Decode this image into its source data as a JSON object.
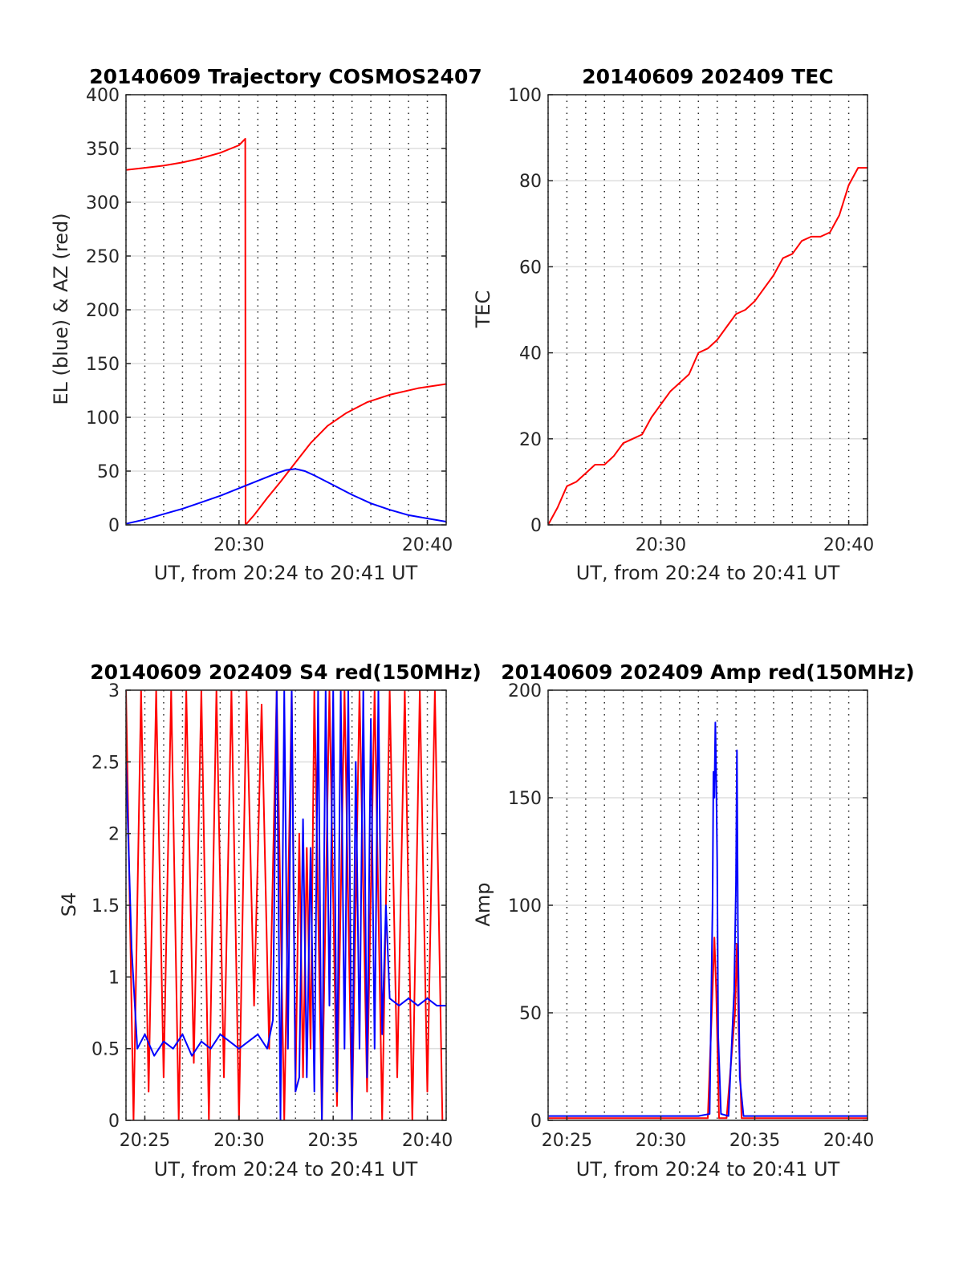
{
  "chart_data": [
    {
      "id": "trajectory",
      "type": "line",
      "title": "20140609 Trajectory COSMOS2407",
      "xlabel": "UT, from 20:24 to 20:41 UT",
      "ylabel": "EL (blue) & AZ (red)",
      "xlim": [
        24.0,
        41.0
      ],
      "ylim": [
        0,
        400
      ],
      "xticks": [
        {
          "value": 30,
          "label": "20:30"
        },
        {
          "value": 40,
          "label": "20:40"
        }
      ],
      "yticks": [
        0,
        50,
        100,
        150,
        200,
        250,
        300,
        350,
        400
      ],
      "xgrid_minutes": [
        24,
        25,
        26,
        27,
        28,
        29,
        30,
        31,
        32,
        33,
        34,
        35,
        36,
        37,
        38,
        39,
        40,
        41
      ],
      "series": [
        {
          "color": "#ff0000",
          "x": [
            24.0,
            25.0,
            26.0,
            27.0,
            28.0,
            29.0,
            30.0,
            30.33,
            30.35,
            30.8,
            31.5,
            32.2,
            33.0,
            33.8,
            34.7,
            35.7,
            36.8,
            38.0,
            39.5,
            41.0
          ],
          "y": [
            330,
            332,
            334,
            337,
            341,
            346,
            353,
            359,
            0,
            9,
            25,
            40,
            58,
            76,
            92,
            104,
            114,
            121,
            127,
            131
          ]
        },
        {
          "color": "#0000ff",
          "x": [
            24.0,
            25.0,
            26.0,
            27.0,
            28.0,
            29.0,
            30.0,
            31.0,
            32.0,
            32.5,
            33.0,
            33.5,
            34.0,
            35.0,
            36.0,
            37.0,
            38.0,
            39.0,
            40.0,
            41.0
          ],
          "y": [
            1,
            5,
            10,
            15,
            21,
            27,
            34,
            41,
            48,
            51,
            52,
            50,
            46,
            37,
            28,
            20,
            14,
            9,
            6,
            3
          ]
        }
      ]
    },
    {
      "id": "tec",
      "type": "line",
      "title": "20140609 202409 TEC",
      "xlabel": "UT, from 20:24 to 20:41 UT",
      "ylabel": "TEC",
      "xlim": [
        24.0,
        41.0
      ],
      "ylim": [
        0,
        100
      ],
      "xticks": [
        {
          "value": 30,
          "label": "20:30"
        },
        {
          "value": 40,
          "label": "20:40"
        }
      ],
      "yticks": [
        0,
        20,
        40,
        60,
        80,
        100
      ],
      "xgrid_minutes": [
        24,
        25,
        26,
        27,
        28,
        29,
        30,
        31,
        32,
        33,
        34,
        35,
        36,
        37,
        38,
        39,
        40,
        41
      ],
      "series": [
        {
          "color": "#ff0000",
          "x": [
            24.0,
            24.5,
            25.0,
            25.5,
            26.0,
            26.5,
            27.0,
            27.5,
            28.0,
            28.5,
            29.0,
            29.5,
            30.0,
            30.5,
            31.0,
            31.5,
            32.0,
            32.5,
            33.0,
            33.5,
            34.0,
            34.5,
            35.0,
            35.5,
            36.0,
            36.5,
            37.0,
            37.5,
            38.0,
            38.5,
            39.0,
            39.5,
            40.0,
            40.5,
            41.0
          ],
          "y": [
            0,
            4,
            9,
            10,
            12,
            14,
            14,
            16,
            19,
            20,
            21,
            25,
            28,
            31,
            33,
            35,
            40,
            41,
            43,
            46,
            49,
            50,
            52,
            55,
            58,
            62,
            63,
            66,
            67,
            67,
            68,
            72,
            79,
            83,
            83
          ]
        }
      ]
    },
    {
      "id": "s4",
      "type": "line",
      "title": "20140609 202409 S4 red(150MHz)",
      "xlabel": "UT, from 20:24 to 20:41 UT",
      "ylabel": "S4",
      "xlim": [
        24.0,
        41.0
      ],
      "ylim": [
        0,
        3
      ],
      "xticks": [
        {
          "value": 25,
          "label": "20:25"
        },
        {
          "value": 30,
          "label": "20:30"
        },
        {
          "value": 35,
          "label": "20:35"
        },
        {
          "value": 40,
          "label": "20:40"
        }
      ],
      "yticks": [
        0,
        0.5,
        1,
        1.5,
        2,
        2.5,
        3
      ],
      "ytick_labels": [
        "0",
        "0.5",
        "1",
        "1.5",
        "2",
        "2.5",
        "3"
      ],
      "xgrid_minutes": [
        24,
        25,
        26,
        27,
        28,
        29,
        30,
        31,
        32,
        33,
        34,
        35,
        36,
        37,
        38,
        39,
        40,
        41
      ],
      "series": [
        {
          "color": "#ff0000",
          "x": [
            24.0,
            24.4,
            24.8,
            25.2,
            25.6,
            26.0,
            26.4,
            26.8,
            27.2,
            27.6,
            28.0,
            28.4,
            28.8,
            29.2,
            29.6,
            30.0,
            30.4,
            30.8,
            31.2,
            31.6,
            32.0,
            32.4,
            32.8,
            33.0,
            33.2,
            33.4,
            33.6,
            33.8,
            34.0,
            34.4,
            34.8,
            35.2,
            35.6,
            36.0,
            36.4,
            36.8,
            37.2,
            37.6,
            38.0,
            38.4,
            38.8,
            39.2,
            39.6,
            40.0,
            40.4,
            40.8
          ],
          "y": [
            3,
            0,
            3,
            0.2,
            3,
            0.3,
            3,
            0,
            3,
            0.4,
            3,
            0,
            3,
            0.3,
            3,
            0,
            3,
            0.8,
            2.9,
            0.5,
            3,
            0,
            3,
            0.2,
            2.0,
            0.3,
            1.9,
            0.5,
            3,
            0,
            3,
            0.1,
            3,
            0,
            3,
            0.2,
            3,
            0,
            3,
            0.3,
            3,
            0,
            3,
            0.2,
            3,
            0
          ]
        },
        {
          "color": "#0000ff",
          "x": [
            24.0,
            24.3,
            24.6,
            25.0,
            25.5,
            26.0,
            26.5,
            27.0,
            27.5,
            28.0,
            28.5,
            29.0,
            29.5,
            30.0,
            30.5,
            31.0,
            31.5,
            31.8,
            32.0,
            32.2,
            32.4,
            32.6,
            32.8,
            33.0,
            33.2,
            33.4,
            33.6,
            33.8,
            34.0,
            34.2,
            34.4,
            34.6,
            34.8,
            35.0,
            35.2,
            35.4,
            35.6,
            35.8,
            36.0,
            36.2,
            36.4,
            36.6,
            36.8,
            37.0,
            37.2,
            37.4,
            37.6,
            37.8,
            38.0,
            38.5,
            39.0,
            39.5,
            40.0,
            40.5,
            41.0
          ],
          "y": [
            2.5,
            1.2,
            0.5,
            0.6,
            0.45,
            0.55,
            0.5,
            0.6,
            0.45,
            0.55,
            0.5,
            0.6,
            0.55,
            0.5,
            0.55,
            0.6,
            0.5,
            0.7,
            3,
            0,
            3,
            0.5,
            3,
            0.2,
            0.3,
            2.1,
            0.3,
            1.9,
            0.2,
            3,
            0,
            3,
            0.8,
            3,
            0.2,
            3,
            0.5,
            3,
            0,
            2.5,
            0.5,
            3,
            0.3,
            2.8,
            0.5,
            3,
            0.6,
            1.5,
            0.85,
            0.8,
            0.85,
            0.8,
            0.85,
            0.8,
            0.8
          ]
        }
      ]
    },
    {
      "id": "amp",
      "type": "line",
      "title": "20140609 202409 Amp red(150MHz)",
      "xlabel": "UT, from 20:24 to 20:41 UT",
      "ylabel": "Amp",
      "xlim": [
        24.0,
        41.0
      ],
      "ylim": [
        0,
        200
      ],
      "xticks": [
        {
          "value": 25,
          "label": "20:25"
        },
        {
          "value": 30,
          "label": "20:30"
        },
        {
          "value": 35,
          "label": "20:35"
        },
        {
          "value": 40,
          "label": "20:40"
        }
      ],
      "yticks": [
        0,
        50,
        100,
        150,
        200
      ],
      "xgrid_minutes": [
        24,
        25,
        26,
        27,
        28,
        29,
        30,
        31,
        32,
        33,
        34,
        35,
        36,
        37,
        38,
        39,
        40,
        41
      ],
      "series": [
        {
          "color": "#ff0000",
          "x": [
            24.0,
            32.5,
            32.75,
            32.85,
            32.95,
            33.1,
            33.5,
            33.95,
            34.05,
            34.15,
            34.3,
            41.0
          ],
          "y": [
            1,
            1,
            60,
            85,
            60,
            1,
            1,
            50,
            82,
            40,
            1,
            1
          ]
        },
        {
          "color": "#0000ff",
          "x": [
            24.0,
            25.0,
            26.0,
            27.0,
            28.0,
            29.0,
            30.0,
            31.0,
            32.0,
            32.6,
            32.75,
            32.8,
            32.85,
            32.9,
            32.95,
            33.0,
            33.05,
            33.2,
            33.6,
            33.9,
            34.0,
            34.05,
            34.1,
            34.2,
            34.4,
            35.0,
            36.0,
            37.0,
            38.0,
            39.0,
            40.0,
            41.0
          ],
          "y": [
            2,
            2,
            2,
            2,
            2,
            2,
            2,
            2,
            2,
            3,
            100,
            162,
            150,
            185,
            160,
            120,
            40,
            3,
            2,
            60,
            110,
            172,
            90,
            20,
            2,
            2,
            2,
            2,
            2,
            2,
            2,
            2
          ]
        }
      ]
    }
  ]
}
